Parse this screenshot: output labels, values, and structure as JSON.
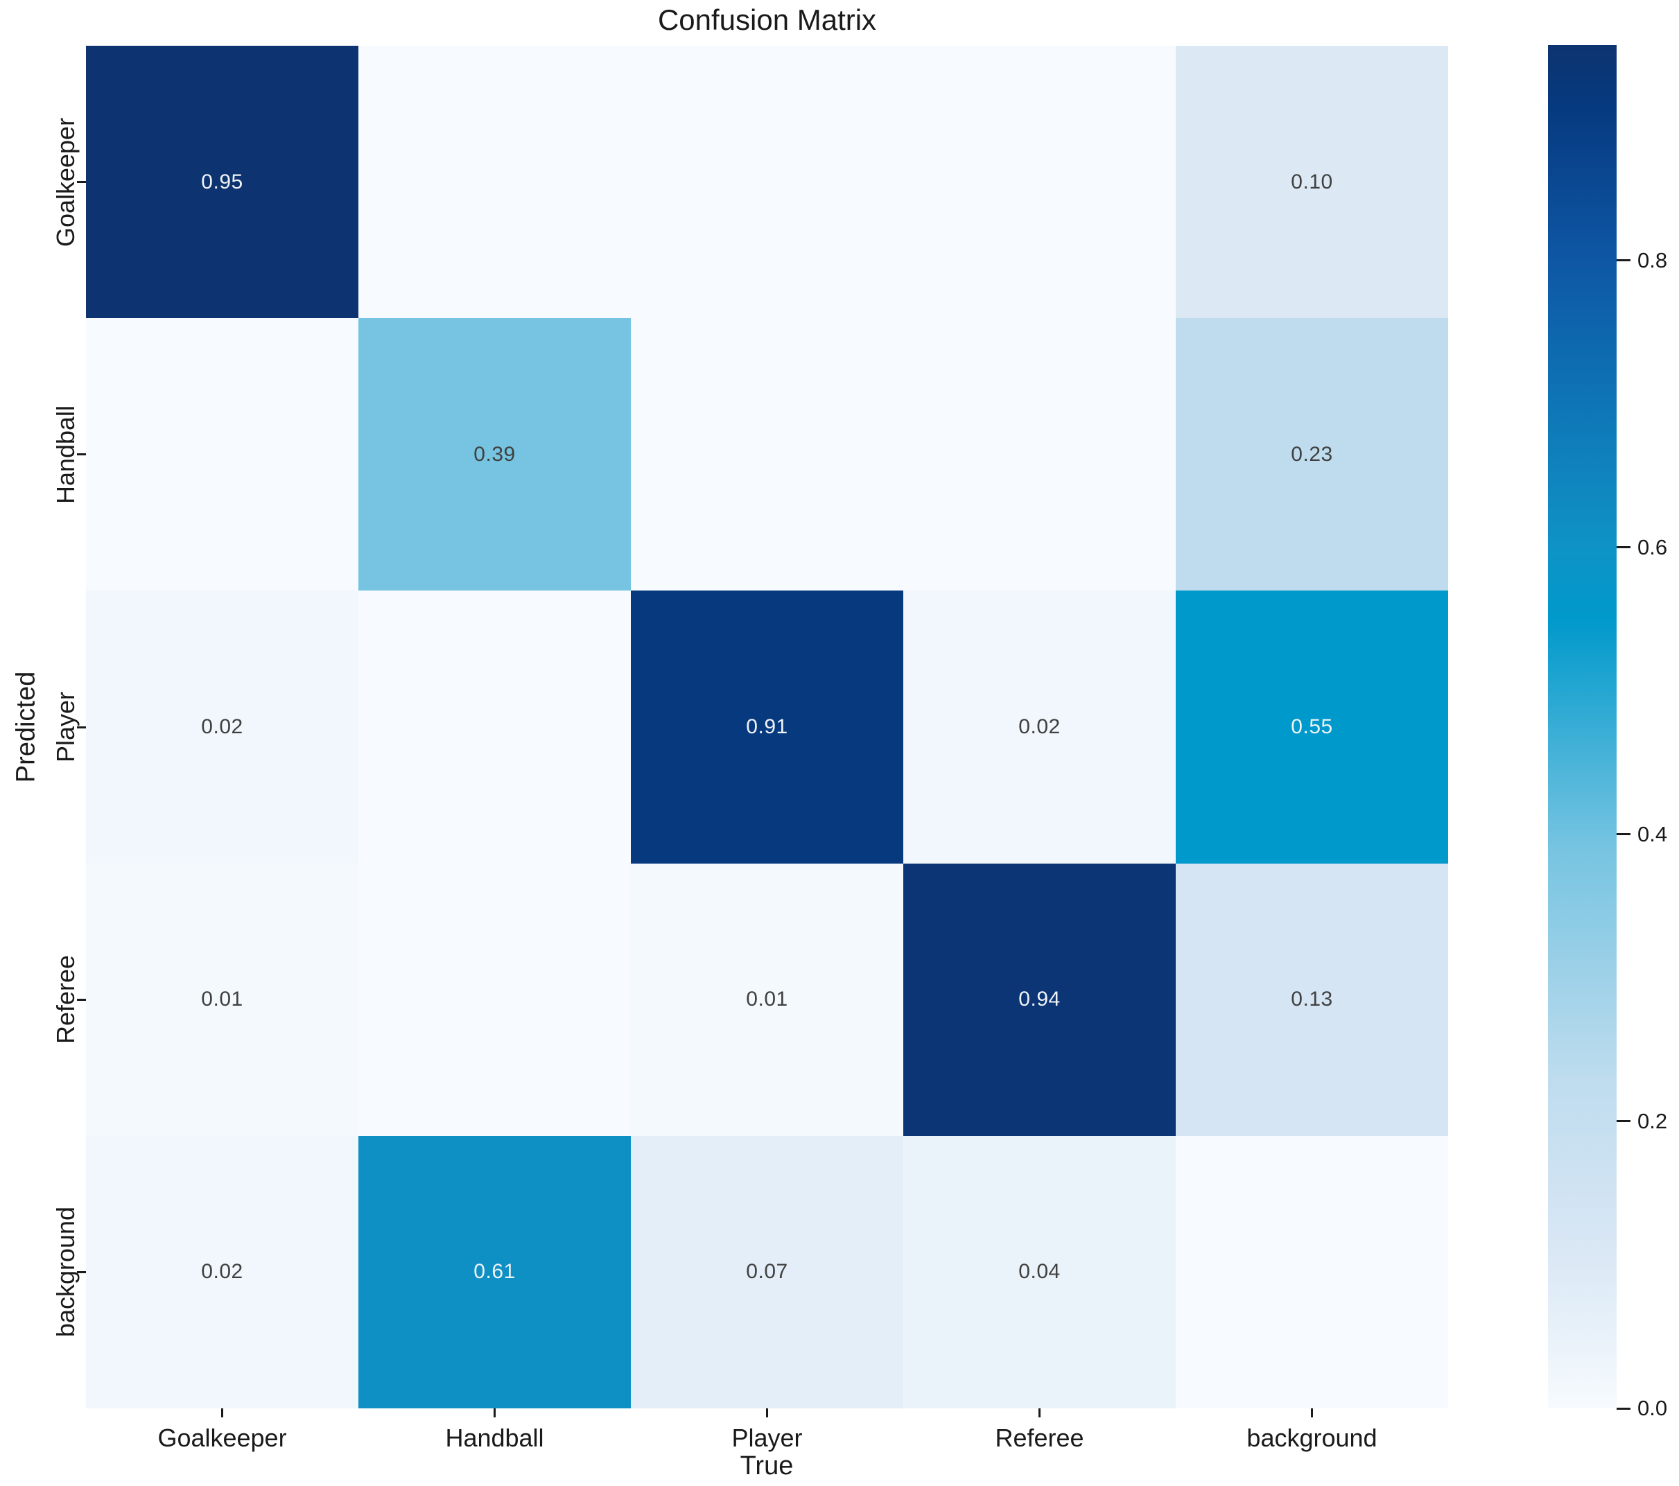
{
  "chart_data": {
    "type": "heatmap",
    "title": "Confusion Matrix",
    "xlabel": "True",
    "ylabel": "Predicted",
    "x_categories": [
      "Goalkeeper",
      "Handball",
      "Player",
      "Referee",
      "background"
    ],
    "y_categories": [
      "Goalkeeper",
      "Handball",
      "Player",
      "Referee",
      "background"
    ],
    "matrix": [
      [
        0.95,
        null,
        null,
        null,
        0.1
      ],
      [
        null,
        0.39,
        null,
        null,
        0.23
      ],
      [
        0.02,
        null,
        0.91,
        0.02,
        0.55
      ],
      [
        0.01,
        null,
        0.01,
        0.94,
        0.13
      ],
      [
        0.02,
        0.61,
        0.07,
        0.04,
        null
      ]
    ],
    "vmin": 0.0,
    "vmax": 0.95,
    "annotation_decimals": 2,
    "grid": false,
    "colorbar": {
      "position": "right",
      "tick_values": [
        0.0,
        0.2,
        0.4,
        0.6,
        0.8
      ],
      "tick_labels": [
        "0.0",
        "0.2",
        "0.4",
        "0.6",
        "0.8"
      ]
    },
    "colormap_stops": [
      [
        0.0,
        "#f7fbff"
      ],
      [
        0.021,
        "#f1f7fc"
      ],
      [
        0.074,
        "#e3eef8"
      ],
      [
        0.105,
        "#dce9f5"
      ],
      [
        0.137,
        "#d5e5f4"
      ],
      [
        0.242,
        "#bedcee"
      ],
      [
        0.411,
        "#76c4e1"
      ],
      [
        0.579,
        "#0099cb"
      ],
      [
        0.632,
        "#0f93c6"
      ],
      [
        0.842,
        "#0e57a5"
      ],
      [
        0.958,
        "#06397e"
      ],
      [
        1.0,
        "#0d3470"
      ]
    ],
    "annotation_colors": {
      "dark": "#404040",
      "light": "#f0f3f6"
    },
    "light_text_threshold": 0.5
  }
}
